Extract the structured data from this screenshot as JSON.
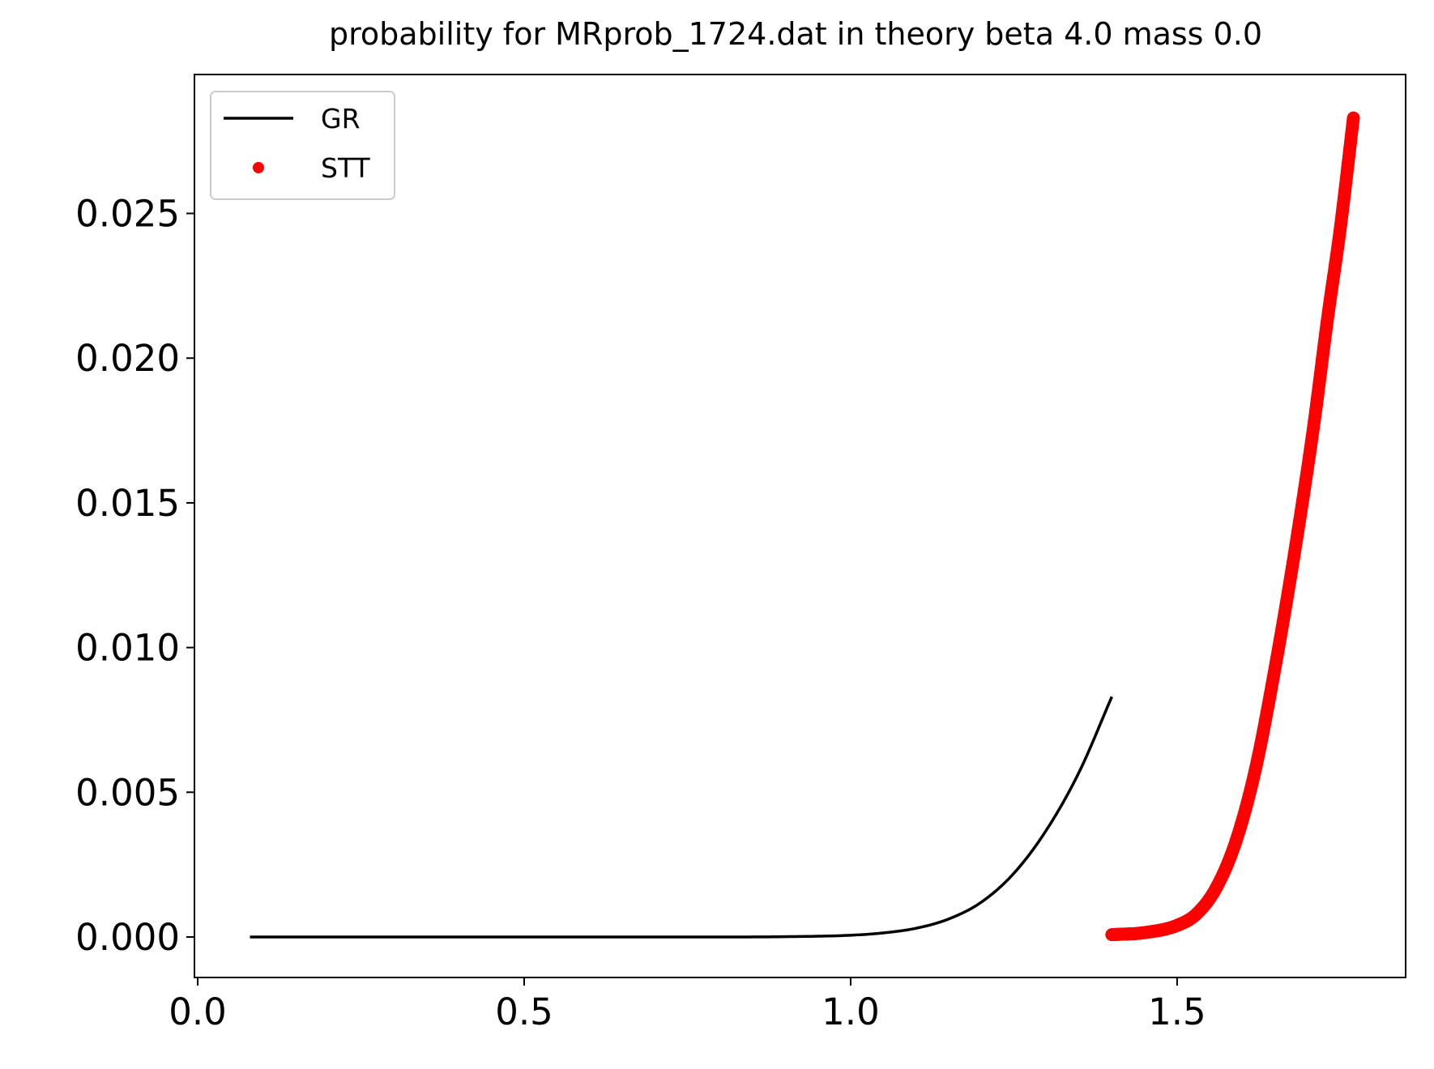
{
  "chart_data": {
    "type": "line",
    "title": "probability for MRprob_1724.dat in theory beta 4.0 mass 0.0",
    "xlabel": "",
    "ylabel": "",
    "xlim": [
      -0.005,
      1.85
    ],
    "ylim": [
      -0.0014,
      0.0298
    ],
    "xticks": [
      {
        "value": 0.0,
        "label": "0.0"
      },
      {
        "value": 0.5,
        "label": "0.5"
      },
      {
        "value": 1.0,
        "label": "1.0"
      },
      {
        "value": 1.5,
        "label": "1.5"
      }
    ],
    "yticks": [
      {
        "value": 0.0,
        "label": "0.000"
      },
      {
        "value": 0.005,
        "label": "0.005"
      },
      {
        "value": 0.01,
        "label": "0.010"
      },
      {
        "value": 0.015,
        "label": "0.015"
      },
      {
        "value": 0.02,
        "label": "0.020"
      },
      {
        "value": 0.025,
        "label": "0.025"
      }
    ],
    "grid": false,
    "legend": {
      "position": "upper-left"
    },
    "series": [
      {
        "name": "GR",
        "style": "line",
        "color": "#000000",
        "x": [
          0.08,
          0.2,
          0.4,
          0.6,
          0.8,
          0.9,
          1.0,
          1.05,
          1.1,
          1.15,
          1.2,
          1.25,
          1.3,
          1.35,
          1.4
        ],
        "y": [
          0.0,
          0.0,
          0.0,
          0.0,
          0.0,
          1e-05,
          6e-05,
          0.00014,
          0.0003,
          0.00062,
          0.0012,
          0.0022,
          0.0037,
          0.0057,
          0.0083
        ]
      },
      {
        "name": "STT",
        "style": "points",
        "color": "#ff0000",
        "x": [
          1.4,
          1.45,
          1.5,
          1.53,
          1.56,
          1.59,
          1.62,
          1.65,
          1.68,
          1.71,
          1.73,
          1.75,
          1.77
        ],
        "y": [
          8e-05,
          0.00015,
          0.0004,
          0.0008,
          0.0017,
          0.0033,
          0.0058,
          0.0093,
          0.0133,
          0.0178,
          0.0213,
          0.0245,
          0.0283
        ]
      }
    ]
  }
}
